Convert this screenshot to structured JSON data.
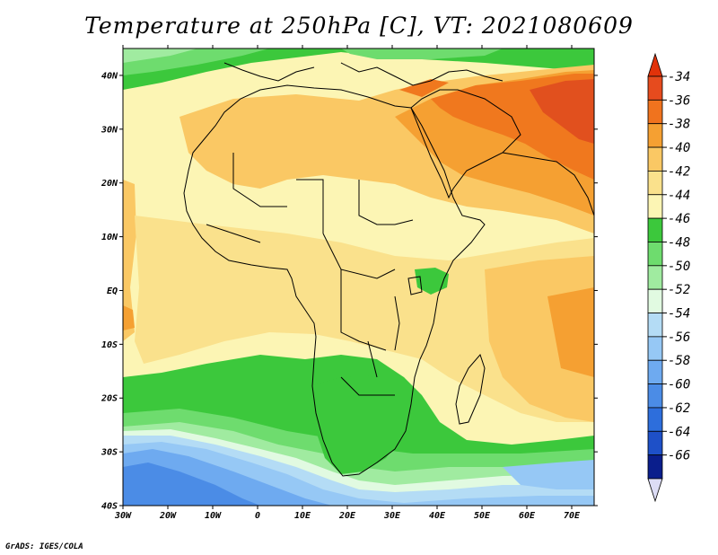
{
  "title": "Temperature at 250hPa [C], VT: 2021080609",
  "credit": "GrADS: IGES/COLA",
  "map": {
    "lon_range": [
      -30,
      75
    ],
    "lat_range": [
      -40,
      45
    ],
    "lat_ticks": [
      {
        "value": 40,
        "label": "40N"
      },
      {
        "value": 30,
        "label": "30N"
      },
      {
        "value": 20,
        "label": "20N"
      },
      {
        "value": 10,
        "label": "10N"
      },
      {
        "value": 0,
        "label": "EQ"
      },
      {
        "value": -10,
        "label": "10S"
      },
      {
        "value": -20,
        "label": "20S"
      },
      {
        "value": -30,
        "label": "30S"
      },
      {
        "value": -40,
        "label": "40S"
      }
    ],
    "lon_ticks": [
      {
        "value": -30,
        "label": "30W"
      },
      {
        "value": -20,
        "label": "20W"
      },
      {
        "value": -10,
        "label": "10W"
      },
      {
        "value": 0,
        "label": "0"
      },
      {
        "value": 10,
        "label": "10E"
      },
      {
        "value": 20,
        "label": "20E"
      },
      {
        "value": 30,
        "label": "30E"
      },
      {
        "value": 40,
        "label": "40E"
      },
      {
        "value": 50,
        "label": "50E"
      },
      {
        "value": 60,
        "label": "60E"
      },
      {
        "value": 70,
        "label": "70E"
      }
    ]
  },
  "colorbar": {
    "levels": [
      {
        "label": "-34",
        "color": "#e64b1e"
      },
      {
        "label": "-36",
        "color": "#f0731e"
      },
      {
        "label": "-38",
        "color": "#f5a032"
      },
      {
        "label": "-40",
        "color": "#fac864"
      },
      {
        "label": "-42",
        "color": "#fae18c"
      },
      {
        "label": "-44",
        "color": "#fcf5b4"
      },
      {
        "label": "-46",
        "color": "#3cc83c"
      },
      {
        "label": "-48",
        "color": "#6edc6e"
      },
      {
        "label": "-50",
        "color": "#a0eba0"
      },
      {
        "label": "-52",
        "color": "#e1fae1"
      },
      {
        "label": "-54",
        "color": "#b4dcf5"
      },
      {
        "label": "-56",
        "color": "#96c8f5"
      },
      {
        "label": "-58",
        "color": "#6eaaf0"
      },
      {
        "label": "-60",
        "color": "#4b8ce6"
      },
      {
        "label": "-62",
        "color": "#2d6edc"
      },
      {
        "label": "-64",
        "color": "#1e50c8"
      },
      {
        "label": "-66",
        "color": "#0a1e8c"
      }
    ],
    "top_color": "#e1320a",
    "bottom_color": "#dcdcf5"
  },
  "field_colors": {
    "warm_max": "#e1501e",
    "warm": "#f0781e",
    "orange": "#f5a032",
    "light_orange": "#fac864",
    "yellow": "#fae18c",
    "pale": "#fcf5b4",
    "green": "#3cc83c",
    "mid_green": "#6edc6e",
    "light_green": "#a0eba0",
    "pale_green": "#e1fae1",
    "light_blue": "#b4dcf5",
    "blue": "#96c8f5",
    "mid_blue": "#6eaaf0",
    "dark_blue": "#4b8ce6"
  }
}
